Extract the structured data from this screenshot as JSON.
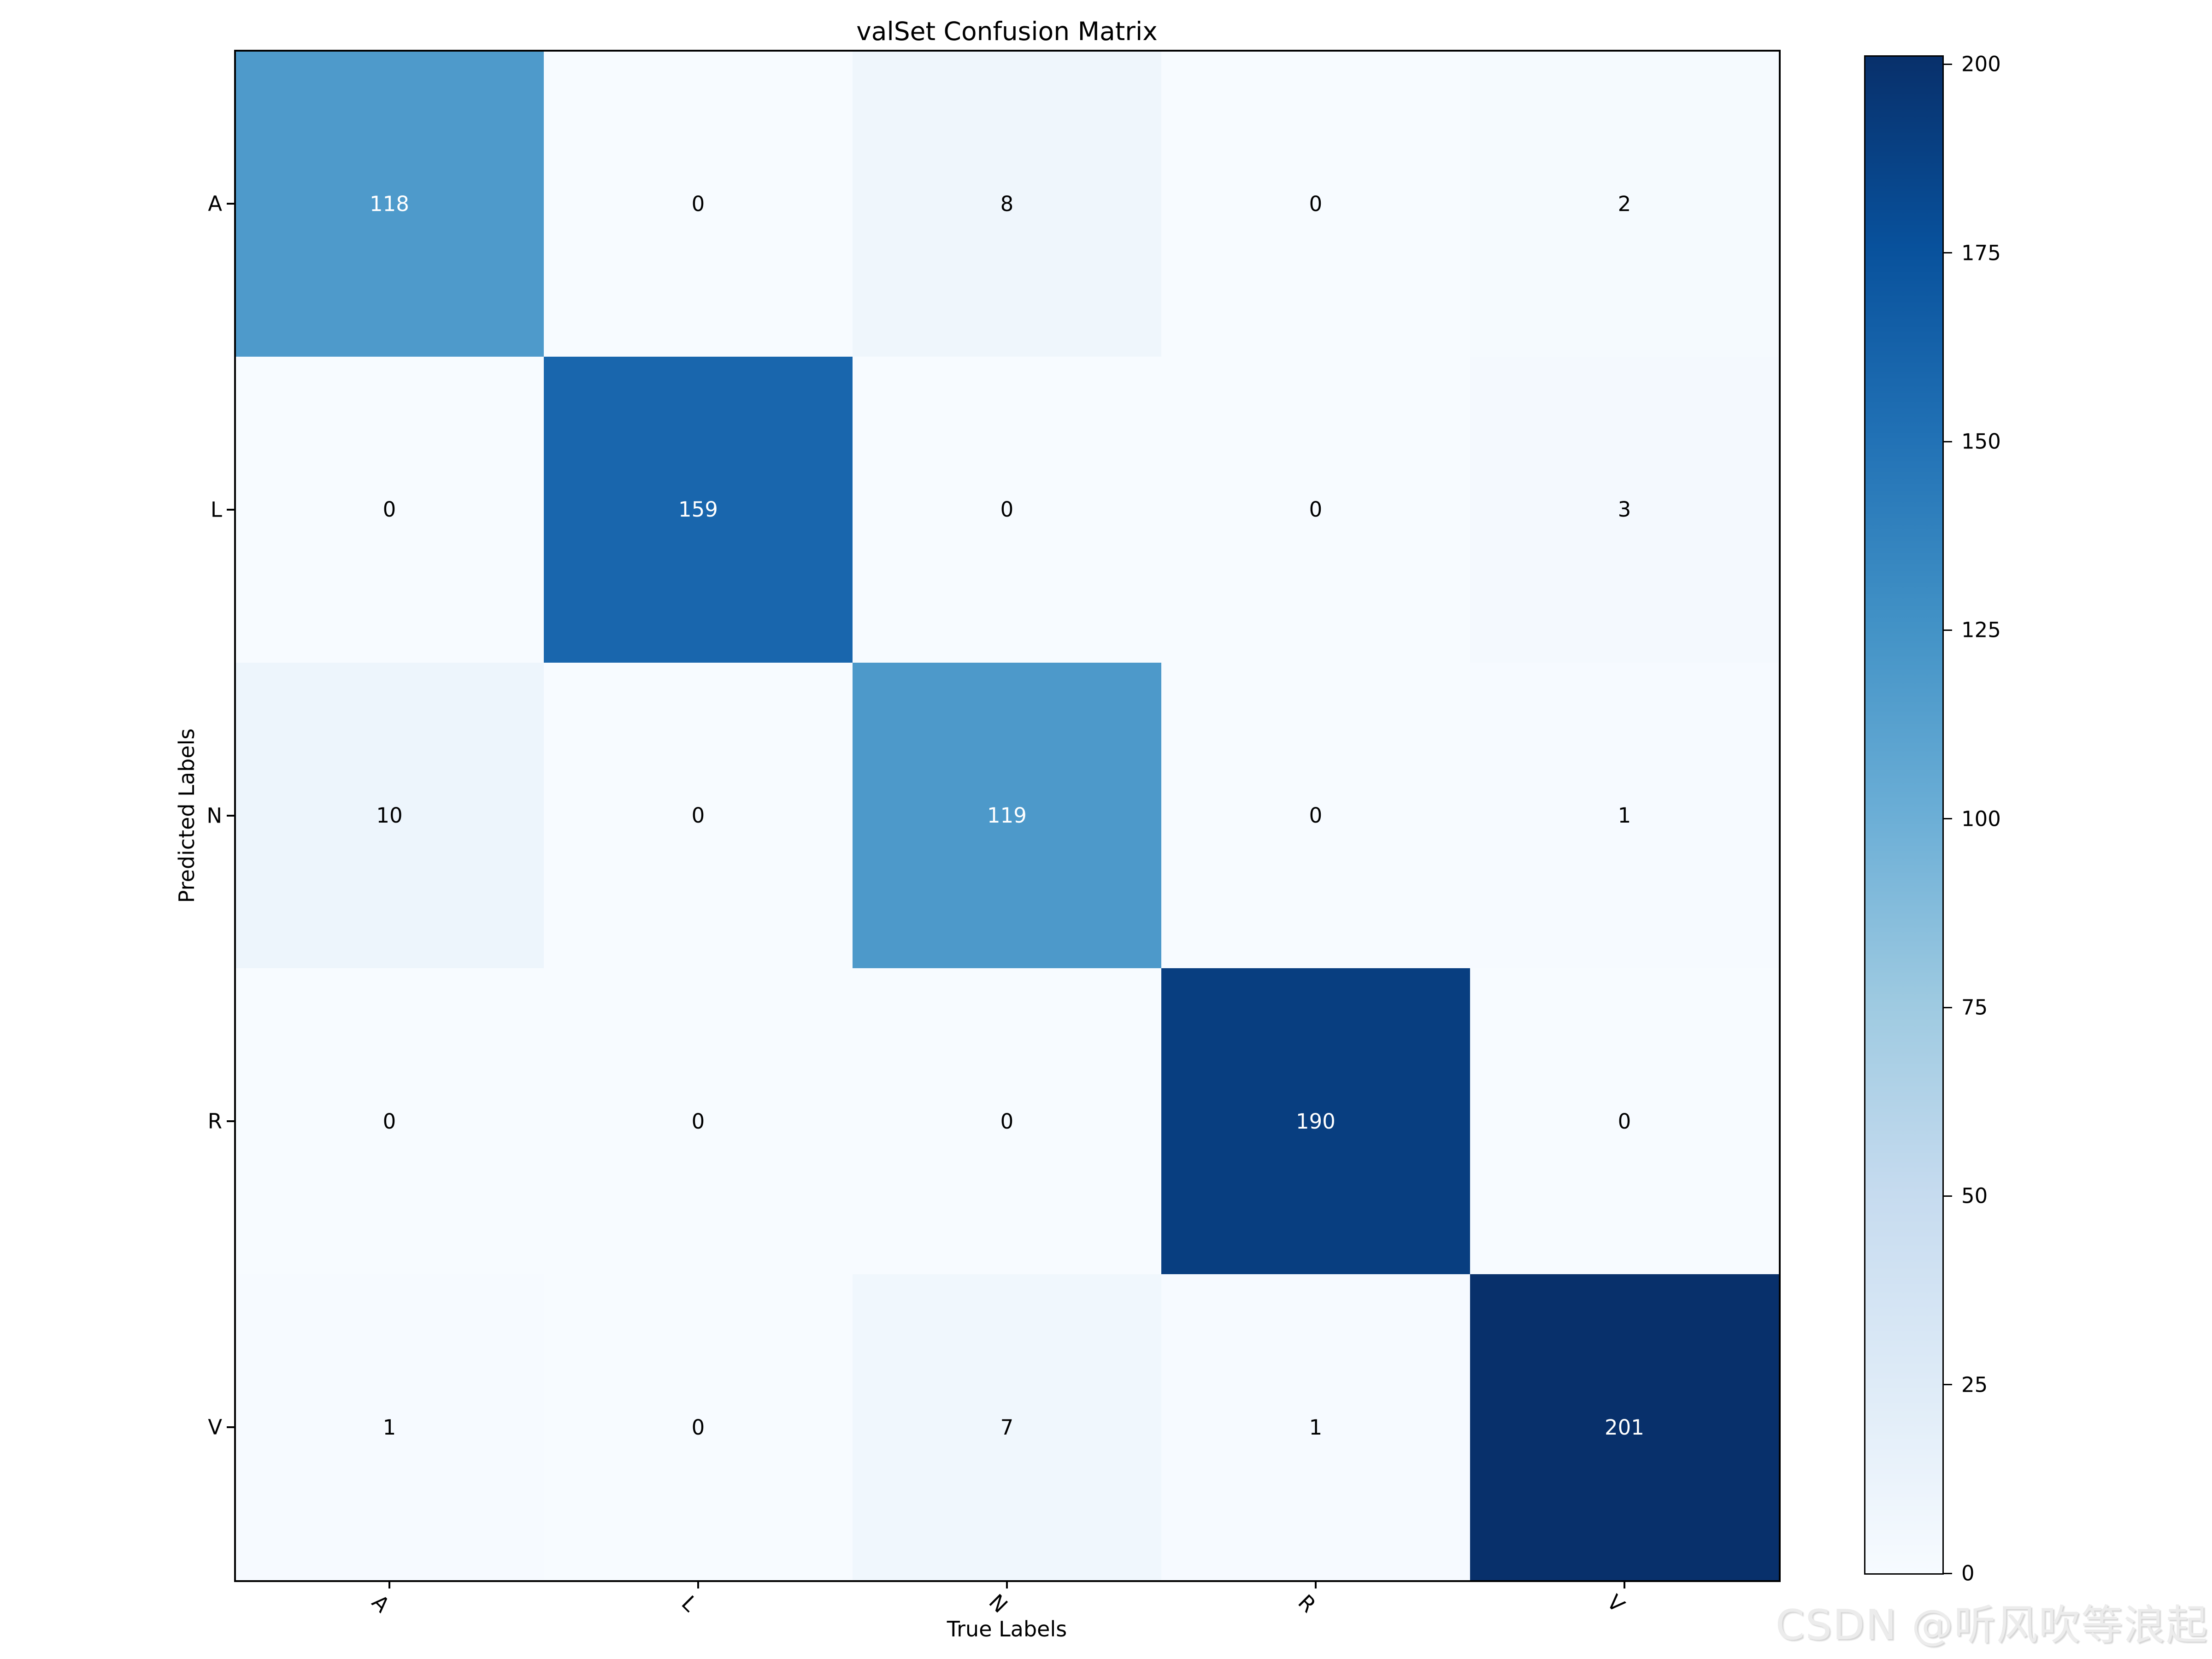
{
  "title": "valSet Confusion Matrix",
  "watermark": "CSDN @听风吹等浪起",
  "chart_data": {
    "type": "heatmap",
    "title": "valSet Confusion Matrix",
    "xlabel": "True Labels",
    "ylabel": "Predicted Labels",
    "x_categories": [
      "A",
      "L",
      "N",
      "R",
      "V"
    ],
    "y_categories": [
      "A",
      "L",
      "N",
      "R",
      "V"
    ],
    "matrix": [
      [
        118,
        0,
        8,
        0,
        2
      ],
      [
        0,
        159,
        0,
        0,
        3
      ],
      [
        10,
        0,
        119,
        0,
        1
      ],
      [
        0,
        0,
        0,
        190,
        0
      ],
      [
        1,
        0,
        7,
        1,
        201
      ]
    ],
    "vmin": 0,
    "vmax": 201,
    "colormap": "Blues",
    "colormap_stops": [
      "#f7fbff",
      "#deebf7",
      "#c6dbef",
      "#9ecae1",
      "#6baed6",
      "#4292c6",
      "#2171b5",
      "#08519c",
      "#08306b"
    ],
    "cell_text_color_light": "#ffffff",
    "cell_text_color_dark": "#000000",
    "colorbar_ticks": [
      0,
      25,
      50,
      75,
      100,
      125,
      150,
      175,
      200
    ],
    "legend_position": "right-colorbar",
    "grid": false
  }
}
